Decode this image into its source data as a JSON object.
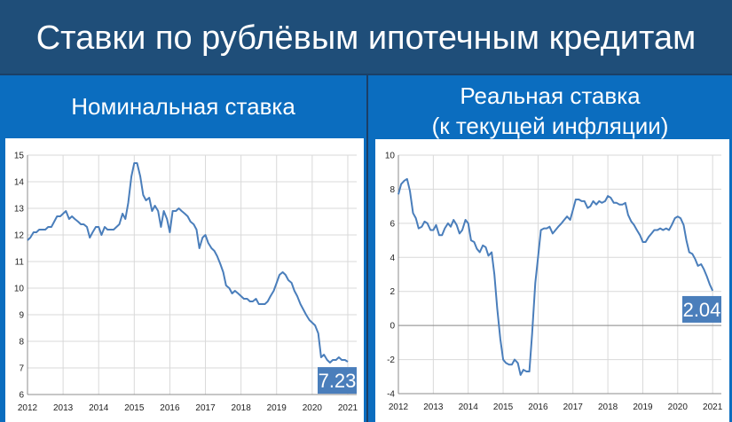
{
  "page": {
    "title": "Ставки по рублёвым ипотечным кредитам"
  },
  "panels": {
    "left": {
      "heading": "Номинальная ставка"
    },
    "right": {
      "heading_line1": "Реальная ставка",
      "heading_line2": "(к текущей инфляции)"
    }
  },
  "colors": {
    "title_bg": "#1f4e79",
    "panel_bg": "#0b6dbf",
    "line": "#4a7ebb",
    "badge": "#4a7ebb",
    "grid": "#d9d9d9"
  },
  "chart_data": [
    {
      "type": "line",
      "title": "",
      "xlabel": "",
      "ylabel": "",
      "xlim": [
        2012,
        2021.25
      ],
      "ylim": [
        6,
        15
      ],
      "yticks": [
        6,
        7,
        8,
        9,
        10,
        11,
        12,
        13,
        14,
        15
      ],
      "xticks": [
        "2012",
        "2013",
        "2014",
        "2015",
        "2016",
        "2017",
        "2018",
        "2019",
        "2020",
        "2021"
      ],
      "grid": true,
      "last_value_label": "7.23",
      "x": [
        2012.0,
        2012.08,
        2012.17,
        2012.25,
        2012.33,
        2012.42,
        2012.5,
        2012.58,
        2012.67,
        2012.75,
        2012.83,
        2012.92,
        2013.0,
        2013.08,
        2013.17,
        2013.25,
        2013.33,
        2013.42,
        2013.5,
        2013.58,
        2013.67,
        2013.75,
        2013.83,
        2013.92,
        2014.0,
        2014.08,
        2014.17,
        2014.25,
        2014.33,
        2014.42,
        2014.5,
        2014.58,
        2014.67,
        2014.75,
        2014.83,
        2014.92,
        2015.0,
        2015.08,
        2015.17,
        2015.25,
        2015.33,
        2015.42,
        2015.5,
        2015.58,
        2015.67,
        2015.75,
        2015.83,
        2015.92,
        2016.0,
        2016.08,
        2016.17,
        2016.25,
        2016.33,
        2016.42,
        2016.5,
        2016.58,
        2016.67,
        2016.75,
        2016.83,
        2016.92,
        2017.0,
        2017.08,
        2017.17,
        2017.25,
        2017.33,
        2017.42,
        2017.5,
        2017.58,
        2017.67,
        2017.75,
        2017.83,
        2017.92,
        2018.0,
        2018.08,
        2018.17,
        2018.25,
        2018.33,
        2018.42,
        2018.5,
        2018.58,
        2018.67,
        2018.75,
        2018.83,
        2018.92,
        2019.0,
        2019.08,
        2019.17,
        2019.25,
        2019.33,
        2019.42,
        2019.5,
        2019.58,
        2019.67,
        2019.75,
        2019.83,
        2019.92,
        2020.0,
        2020.08,
        2020.17,
        2020.25,
        2020.33,
        2020.42,
        2020.5,
        2020.58,
        2020.67,
        2020.75,
        2020.83,
        2020.92,
        2021.0
      ],
      "series": [
        {
          "values": [
            11.8,
            11.9,
            12.1,
            12.1,
            12.2,
            12.2,
            12.2,
            12.3,
            12.3,
            12.5,
            12.7,
            12.7,
            12.8,
            12.9,
            12.6,
            12.7,
            12.6,
            12.5,
            12.4,
            12.4,
            12.3,
            11.9,
            12.1,
            12.3,
            12.3,
            12.0,
            12.3,
            12.2,
            12.2,
            12.2,
            12.3,
            12.4,
            12.8,
            12.6,
            13.2,
            14.2,
            14.7,
            14.7,
            14.2,
            13.5,
            13.3,
            13.4,
            12.9,
            13.1,
            12.9,
            12.3,
            12.9,
            12.6,
            12.1,
            12.9,
            12.9,
            13.0,
            12.9,
            12.8,
            12.7,
            12.5,
            12.4,
            12.2,
            11.5,
            11.9,
            12.0,
            11.7,
            11.5,
            11.4,
            11.2,
            10.9,
            10.6,
            10.1,
            10.0,
            9.8,
            9.9,
            9.8,
            9.7,
            9.6,
            9.6,
            9.5,
            9.5,
            9.6,
            9.4,
            9.4,
            9.4,
            9.5,
            9.7,
            9.9,
            10.2,
            10.5,
            10.6,
            10.5,
            10.3,
            10.2,
            9.9,
            9.7,
            9.4,
            9.2,
            9.0,
            8.8,
            8.7,
            8.6,
            8.3,
            7.4,
            7.5,
            7.3,
            7.2,
            7.3,
            7.3,
            7.4,
            7.3,
            7.3,
            7.23
          ]
        }
      ]
    },
    {
      "type": "line",
      "title": "",
      "xlabel": "",
      "ylabel": "",
      "xlim": [
        2012,
        2021.25
      ],
      "ylim": [
        -4,
        10
      ],
      "yticks": [
        -4,
        -2,
        0,
        2,
        4,
        6,
        8,
        10
      ],
      "xticks": [
        "2012",
        "2013",
        "2014",
        "2015",
        "2016",
        "2017",
        "2018",
        "2019",
        "2020",
        "2021"
      ],
      "grid": true,
      "last_value_label": "2.04",
      "x": [
        2012.0,
        2012.08,
        2012.17,
        2012.25,
        2012.33,
        2012.42,
        2012.5,
        2012.58,
        2012.67,
        2012.75,
        2012.83,
        2012.92,
        2013.0,
        2013.08,
        2013.17,
        2013.25,
        2013.33,
        2013.42,
        2013.5,
        2013.58,
        2013.67,
        2013.75,
        2013.83,
        2013.92,
        2014.0,
        2014.08,
        2014.17,
        2014.25,
        2014.33,
        2014.42,
        2014.5,
        2014.58,
        2014.67,
        2014.75,
        2014.83,
        2014.92,
        2015.0,
        2015.08,
        2015.17,
        2015.25,
        2015.33,
        2015.42,
        2015.5,
        2015.58,
        2015.67,
        2015.75,
        2015.83,
        2015.92,
        2016.0,
        2016.08,
        2016.17,
        2016.25,
        2016.33,
        2016.42,
        2016.5,
        2016.58,
        2016.67,
        2016.75,
        2016.83,
        2016.92,
        2017.0,
        2017.08,
        2017.17,
        2017.25,
        2017.33,
        2017.42,
        2017.5,
        2017.58,
        2017.67,
        2017.75,
        2017.83,
        2017.92,
        2018.0,
        2018.08,
        2018.17,
        2018.25,
        2018.33,
        2018.42,
        2018.5,
        2018.58,
        2018.67,
        2018.75,
        2018.83,
        2018.92,
        2019.0,
        2019.08,
        2019.17,
        2019.25,
        2019.33,
        2019.42,
        2019.5,
        2019.58,
        2019.67,
        2019.75,
        2019.83,
        2019.92,
        2020.0,
        2020.08,
        2020.17,
        2020.25,
        2020.33,
        2020.42,
        2020.5,
        2020.58,
        2020.67,
        2020.75,
        2020.83,
        2020.92,
        2021.0
      ],
      "series": [
        {
          "values": [
            7.7,
            8.3,
            8.5,
            8.6,
            7.9,
            6.6,
            6.3,
            5.7,
            5.8,
            6.1,
            6.0,
            5.6,
            5.6,
            5.9,
            5.3,
            5.3,
            5.7,
            6.0,
            5.8,
            6.2,
            5.9,
            5.4,
            5.6,
            6.2,
            6.0,
            5.0,
            4.9,
            4.5,
            4.3,
            4.7,
            4.6,
            4.1,
            4.3,
            3.0,
            1.0,
            -0.8,
            -2.0,
            -2.2,
            -2.3,
            -2.3,
            -2.0,
            -2.2,
            -2.9,
            -2.6,
            -2.7,
            -2.7,
            -0.5,
            2.5,
            4.0,
            5.6,
            5.7,
            5.7,
            5.8,
            5.4,
            5.6,
            5.8,
            6.0,
            6.2,
            6.4,
            6.2,
            6.8,
            7.4,
            7.4,
            7.3,
            7.3,
            6.9,
            7.0,
            7.3,
            7.1,
            7.3,
            7.2,
            7.3,
            7.6,
            7.5,
            7.2,
            7.2,
            7.1,
            7.1,
            7.2,
            6.5,
            6.1,
            5.9,
            5.6,
            5.3,
            4.9,
            4.9,
            5.2,
            5.4,
            5.6,
            5.6,
            5.7,
            5.6,
            5.7,
            5.6,
            5.9,
            6.3,
            6.4,
            6.3,
            5.9,
            5.0,
            4.3,
            4.2,
            3.9,
            3.5,
            3.6,
            3.3,
            2.9,
            2.4,
            2.04
          ]
        }
      ]
    }
  ]
}
